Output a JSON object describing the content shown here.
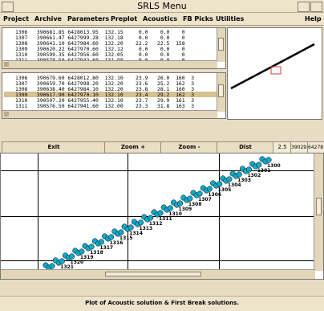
{
  "window": {
    "title": "SRLS Menu"
  },
  "menu": {
    "items": [
      "Project",
      "Archive",
      "Parameters",
      "Preplot",
      "Acoustics",
      "FB Picks",
      "Utilities"
    ],
    "help": "Help"
  },
  "top_list": {
    "rows": [
      "1306   390681.85 6428013.95  132.15     0.0    0.0    0",
      "1307   390661.47 6427999.28  132.18     0.0    0.0    0",
      "1308   390641.10 6427984.60  132.20    22.2   22.5  158",
      "1309   390620.22 6427970.60  132.12     0.0    0.0    0",
      "1310   390599.35 6427956.60  132.05     0.0    0.0    0",
      "1311   390578.50 6427942.60  131.98     0.0    0.0    0"
    ]
  },
  "bottom_list": {
    "rows": [
      "1306   390679.60 6428012.80  132.10    23.9   26.0  160  3",
      "1307   390659.70 6427998.20  132.20    23.6   25.2  162  3",
      "1308   390638.40 6427984.10  132.20    23.8   28.1  160  3",
      "1309   390617.90 6427970.10  132.10    23.4   29.2  162  3",
      "1310   390597.20 6427955.40  132.10    23.7   29.9  161  3",
      "1311   390576.50 6427941.60  132.00    23.3   31.8  163  3"
    ],
    "highlighted_index": 3,
    "highlight_color": "#d9c090"
  },
  "toolbar": {
    "exit": "Exit",
    "zoom_in": "Zoom +",
    "zoom_out": "Zoom -",
    "dist": "Dist",
    "dist_value": "2.5",
    "x_value": "390293.9",
    "y_value": "6427814.2"
  },
  "plot": {
    "point_color": "#12a8c8",
    "labels": [
      "1300",
      "1301",
      "1302",
      "1303",
      "1304",
      "1305",
      "1306",
      "1307",
      "1308",
      "1309",
      "1310",
      "1311",
      "1312",
      "1313",
      "1314",
      "1315",
      "1316",
      "1317",
      "1318",
      "1319",
      "1320",
      "1321",
      "1322"
    ]
  },
  "status": "Plot of Acoustic solution & First Break solutions."
}
